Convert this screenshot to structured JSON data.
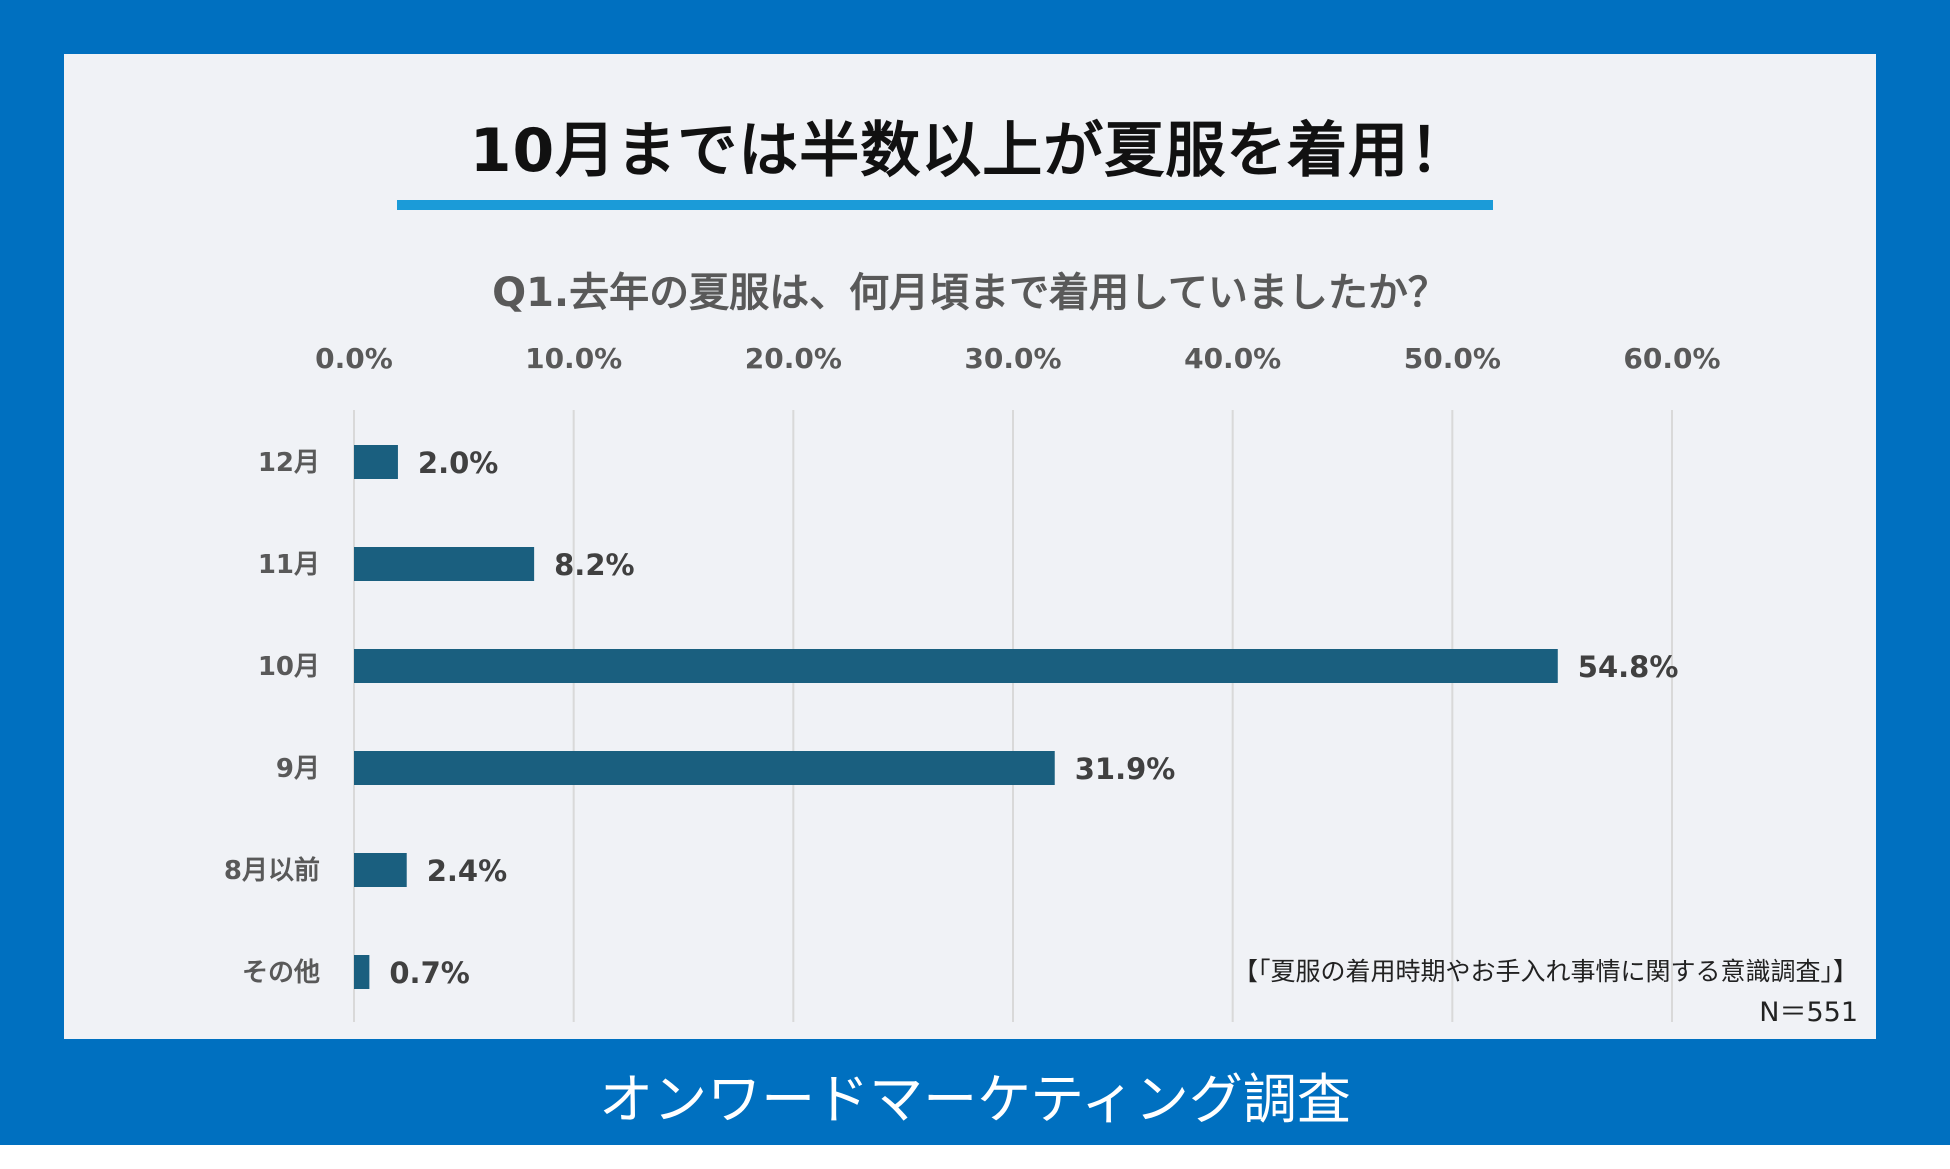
{
  "page": {
    "footer": "オンワードマーケティング調査",
    "source": "【「夏服の着用時期やお手入れ事情に関する意識調査」】",
    "sample_size": "N＝551"
  },
  "chart_data": {
    "type": "bar",
    "orientation": "horizontal",
    "title": "10月までは半数以上が夏服を着用！",
    "subtitle": "Q1.去年の夏服は、何月頃まで着用していましたか？",
    "categories": [
      "12月",
      "11月",
      "10月",
      "9月",
      "8月以前",
      "その他"
    ],
    "values": [
      2.0,
      8.2,
      54.8,
      31.9,
      2.4,
      0.7
    ],
    "value_labels": [
      "2.0%",
      "8.2%",
      "54.8%",
      "31.9%",
      "2.4%",
      "0.7%"
    ],
    "xlim": [
      0,
      60
    ],
    "xticks": [
      0,
      10,
      20,
      30,
      40,
      50,
      60
    ],
    "xtick_labels": [
      "0.0%",
      "10.0%",
      "20.0%",
      "30.0%",
      "40.0%",
      "50.0%",
      "60.0%"
    ],
    "xaxis_position": "top",
    "grid": true,
    "legend": "none",
    "colors": {
      "bar": "#1a5f7f",
      "grid": "#d9d9d9",
      "frame": "#0070c0",
      "panel": "#f0f2f6",
      "underline": "#1b9bd8"
    }
  }
}
